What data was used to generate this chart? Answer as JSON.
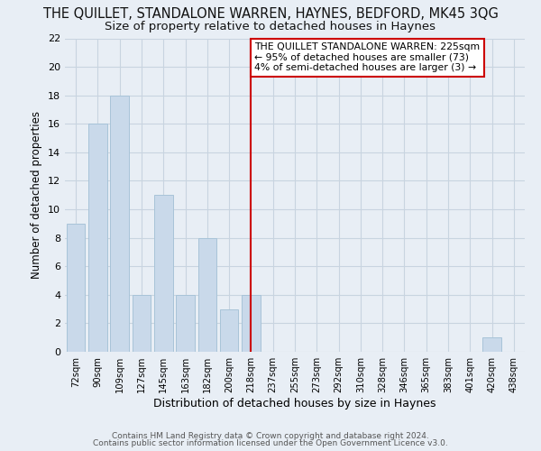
{
  "title": "THE QUILLET, STANDALONE WARREN, HAYNES, BEDFORD, MK45 3QG",
  "subtitle": "Size of property relative to detached houses in Haynes",
  "xlabel": "Distribution of detached houses by size in Haynes",
  "ylabel": "Number of detached properties",
  "footnote1": "Contains HM Land Registry data © Crown copyright and database right 2024.",
  "footnote2": "Contains public sector information licensed under the Open Government Licence v3.0.",
  "categories": [
    "72sqm",
    "90sqm",
    "109sqm",
    "127sqm",
    "145sqm",
    "163sqm",
    "182sqm",
    "200sqm",
    "218sqm",
    "237sqm",
    "255sqm",
    "273sqm",
    "292sqm",
    "310sqm",
    "328sqm",
    "346sqm",
    "365sqm",
    "383sqm",
    "401sqm",
    "420sqm",
    "438sqm"
  ],
  "values": [
    9,
    16,
    18,
    4,
    11,
    4,
    8,
    3,
    4,
    0,
    0,
    0,
    0,
    0,
    0,
    0,
    0,
    0,
    0,
    1,
    0
  ],
  "bar_color": "#c9d9ea",
  "bar_edge_color": "#a8c4d8",
  "vline_index": 8,
  "vline_color": "#cc0000",
  "annotation_line1": "THE QUILLET STANDALONE WARREN: 225sqm",
  "annotation_line2": "← 95% of detached houses are smaller (73)",
  "annotation_line3": "4% of semi-detached houses are larger (3) →",
  "annotation_box_color": "#ffffff",
  "annotation_box_edge": "#cc0000",
  "ylim": [
    0,
    22
  ],
  "yticks": [
    0,
    2,
    4,
    6,
    8,
    10,
    12,
    14,
    16,
    18,
    20,
    22
  ],
  "grid_color": "#c8d4e0",
  "bg_color": "#e8eef5",
  "title_fontsize": 10.5,
  "subtitle_fontsize": 9.5,
  "footnote_fontsize": 6.5
}
